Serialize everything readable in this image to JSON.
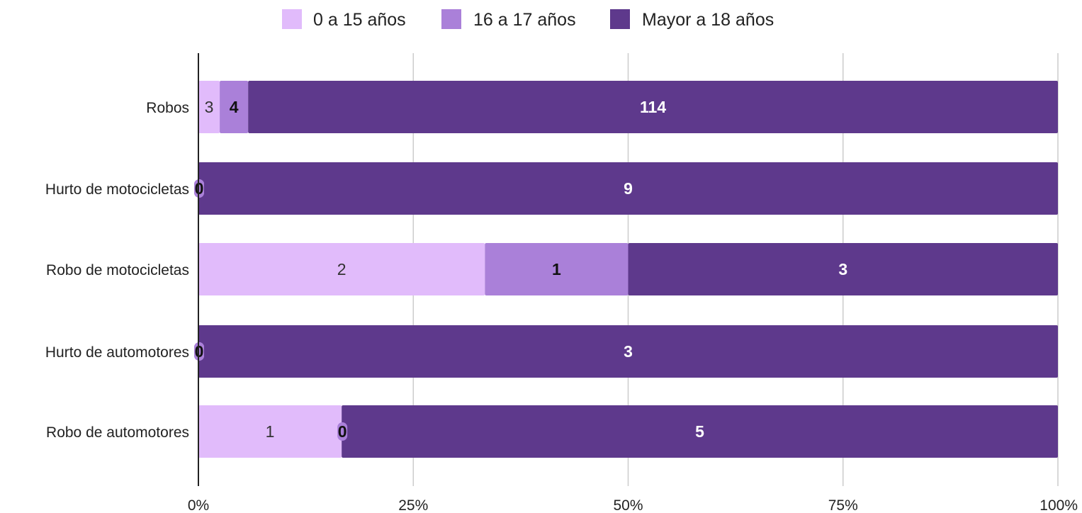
{
  "chart_data": {
    "type": "bar",
    "orientation": "horizontal",
    "stacked": "percent",
    "title": "",
    "xlabel": "",
    "ylabel": "",
    "xlim": [
      0,
      100
    ],
    "grid": true,
    "legend_position": "top",
    "categories": [
      "Robos",
      "Hurto de motocicletas",
      "Robo de motocicletas",
      "Hurto de automotores",
      "Robo de automotores"
    ],
    "x_ticks": [
      "0%",
      "25%",
      "50%",
      "75%",
      "100%"
    ],
    "series": [
      {
        "name": "0 a 15 años",
        "color": "#e1bbfb",
        "values": [
          3,
          0,
          2,
          0,
          1
        ]
      },
      {
        "name": "16 a 17 años",
        "color": "#aa80d9",
        "values": [
          4,
          0,
          1,
          0,
          0
        ]
      },
      {
        "name": "Mayor a 18 años",
        "color": "#5e398c",
        "values": [
          114,
          9,
          3,
          3,
          5
        ]
      }
    ]
  }
}
